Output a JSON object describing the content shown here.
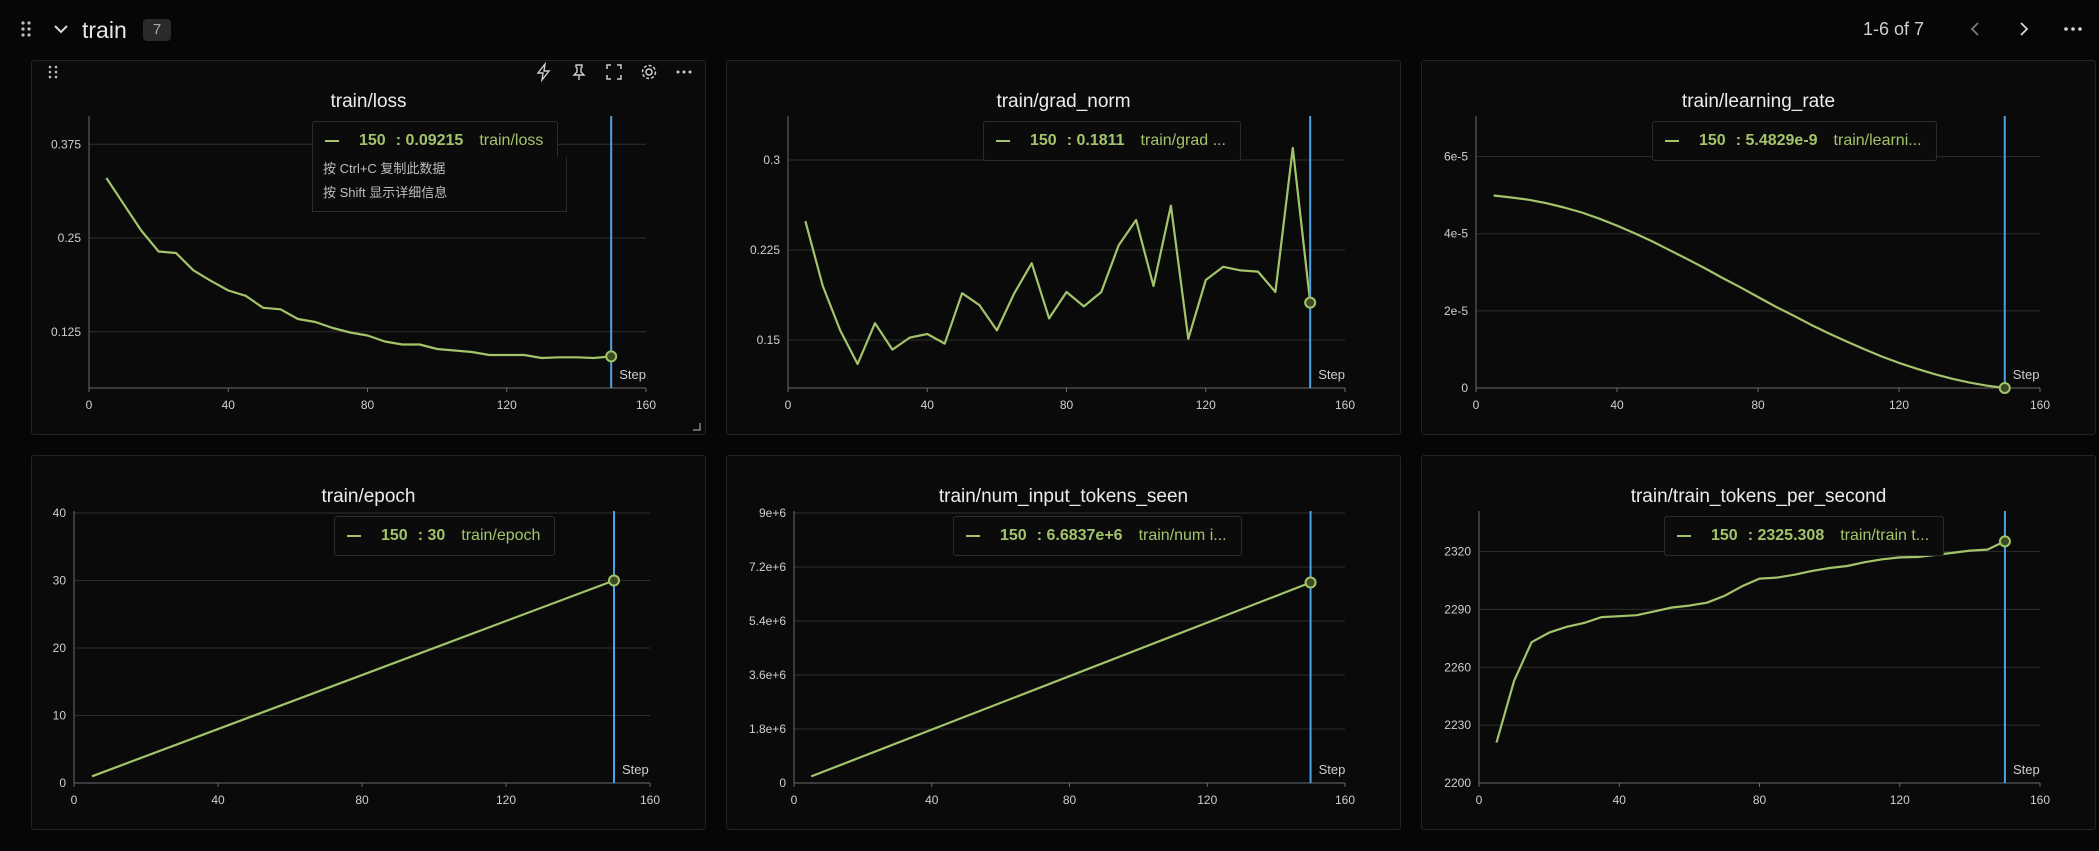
{
  "header": {
    "title": "train",
    "count": "7",
    "pager": "1-6 of 7"
  },
  "tooltip_hint": {
    "copy": "按 Ctrl+C 复制此数据",
    "detail": "按 Shift 显示详细信息"
  },
  "colors": {
    "series": "#a3c46a",
    "cursor": "#4aa3e6",
    "grid": "#2e2e2e",
    "axis": "#6a6a6a"
  },
  "chart_data": [
    {
      "type": "line",
      "title": "train/loss",
      "xlabel": "Step",
      "xlim": [
        0,
        160
      ],
      "xticks": [
        0,
        40,
        80,
        120,
        160
      ],
      "ylim": [
        0.05,
        0.41
      ],
      "yticks": [
        0.125,
        0.25,
        0.375
      ],
      "ytick_labels": [
        "0.125",
        "0.25",
        "0.375"
      ],
      "x": [
        5,
        10,
        15,
        20,
        25,
        30,
        35,
        40,
        45,
        50,
        55,
        60,
        65,
        70,
        75,
        80,
        85,
        90,
        95,
        100,
        105,
        110,
        115,
        120,
        125,
        130,
        135,
        140,
        145,
        150
      ],
      "y": [
        0.33,
        0.295,
        0.26,
        0.232,
        0.23,
        0.207,
        0.193,
        0.18,
        0.173,
        0.157,
        0.155,
        0.142,
        0.138,
        0.13,
        0.124,
        0.12,
        0.112,
        0.108,
        0.108,
        0.102,
        0.1,
        0.098,
        0.094,
        0.094,
        0.094,
        0.09,
        0.091,
        0.091,
        0.09,
        0.09215
      ],
      "cursor": {
        "step": "150",
        "value": "0.09215",
        "series": "train/loss"
      }
    },
    {
      "type": "line",
      "title": "train/grad_norm",
      "xlabel": "Step",
      "xlim": [
        0,
        160
      ],
      "xticks": [
        0,
        40,
        80,
        120,
        160
      ],
      "ylim": [
        0.11,
        0.335
      ],
      "yticks": [
        0.15,
        0.225,
        0.3
      ],
      "ytick_labels": [
        "0.15",
        "0.225",
        "0.3"
      ],
      "x": [
        5,
        10,
        15,
        20,
        25,
        30,
        35,
        40,
        45,
        50,
        55,
        60,
        65,
        70,
        75,
        80,
        85,
        90,
        95,
        100,
        105,
        110,
        115,
        120,
        125,
        130,
        135,
        140,
        145,
        150
      ],
      "y": [
        0.249,
        0.195,
        0.158,
        0.13,
        0.164,
        0.142,
        0.152,
        0.155,
        0.147,
        0.189,
        0.179,
        0.158,
        0.189,
        0.214,
        0.168,
        0.19,
        0.178,
        0.19,
        0.229,
        0.25,
        0.195,
        0.262,
        0.151,
        0.2,
        0.211,
        0.208,
        0.207,
        0.19,
        0.31,
        0.1811
      ],
      "cursor": {
        "step": "150",
        "value": "0.1811",
        "series": "train/grad ..."
      }
    },
    {
      "type": "line",
      "title": "train/learning_rate",
      "xlabel": "Step",
      "xlim": [
        0,
        160
      ],
      "xticks": [
        0,
        40,
        80,
        120,
        160
      ],
      "ylim": [
        0,
        7e-05
      ],
      "yticks": [
        0,
        2e-05,
        4e-05,
        6e-05
      ],
      "ytick_labels": [
        "0",
        "2e-5",
        "4e-5",
        "6e-5"
      ],
      "x": [
        5,
        10,
        15,
        20,
        25,
        30,
        35,
        40,
        45,
        50,
        55,
        60,
        65,
        70,
        75,
        80,
        85,
        90,
        95,
        100,
        105,
        110,
        115,
        120,
        125,
        130,
        135,
        140,
        145,
        150
      ],
      "y": [
        4.99e-05,
        4.94e-05,
        4.88e-05,
        4.79e-05,
        4.68e-05,
        4.55e-05,
        4.39e-05,
        4.21e-05,
        4.01e-05,
        3.8e-05,
        3.57e-05,
        3.34e-05,
        3.1e-05,
        2.85e-05,
        2.61e-05,
        2.36e-05,
        2.11e-05,
        1.88e-05,
        1.64e-05,
        1.42e-05,
        1.21e-05,
        1.01e-05,
        8.2e-06,
        6.5e-06,
        5e-06,
        3.6e-06,
        2.4e-06,
        1.4e-06,
        6e-07,
        5e-09
      ],
      "cursor": {
        "step": "150",
        "value": "5.4829e-9",
        "series": "train/learni..."
      }
    },
    {
      "type": "line",
      "title": "train/epoch",
      "xlabel": "Step",
      "xlim": [
        0,
        160
      ],
      "xticks": [
        0,
        40,
        80,
        120,
        160
      ],
      "ylim": [
        0,
        40
      ],
      "yticks": [
        0,
        10,
        20,
        30,
        40
      ],
      "ytick_labels": [
        "0",
        "10",
        "20",
        "30",
        "40"
      ],
      "x": [
        5,
        150
      ],
      "y": [
        1,
        30
      ],
      "cursor": {
        "step": "150",
        "value": "30",
        "series": "train/epoch"
      }
    },
    {
      "type": "line",
      "title": "train/num_input_tokens_seen",
      "xlabel": "Step",
      "xlim": [
        0,
        160
      ],
      "xticks": [
        0,
        40,
        80,
        120,
        160
      ],
      "ylim": [
        0,
        9000000
      ],
      "yticks": [
        0,
        1800000,
        3600000,
        5400000,
        7200000,
        9000000
      ],
      "ytick_labels": [
        "0",
        "1.8e+6",
        "3.6e+6",
        "5.4e+6",
        "7.2e+6",
        "9e+6"
      ],
      "x": [
        5,
        150
      ],
      "y": [
        220000,
        6683700
      ],
      "cursor": {
        "step": "150",
        "value": "6.6837e+6",
        "series": "train/num i..."
      }
    },
    {
      "type": "line",
      "title": "train/train_tokens_per_second",
      "xlabel": "Step",
      "xlim": [
        0,
        160
      ],
      "xticks": [
        0,
        40,
        80,
        120,
        160
      ],
      "ylim": [
        2200,
        2340
      ],
      "yticks": [
        2200,
        2230,
        2260,
        2290,
        2320
      ],
      "ytick_labels": [
        "2200",
        "2230",
        "2260",
        "2290",
        "2320"
      ],
      "x": [
        5,
        10,
        15,
        20,
        25,
        30,
        35,
        40,
        45,
        50,
        55,
        60,
        65,
        70,
        75,
        80,
        85,
        90,
        95,
        100,
        105,
        110,
        115,
        120,
        125,
        130,
        135,
        140,
        145,
        150
      ],
      "y": [
        2221,
        2253,
        2273,
        2278,
        2281,
        2283,
        2286,
        2286.5,
        2287,
        2289,
        2291,
        2292,
        2293.5,
        2297,
        2302,
        2306,
        2306.5,
        2308,
        2310,
        2311.5,
        2312.5,
        2314.5,
        2316,
        2317,
        2317.2,
        2318.2,
        2319.3,
        2320.5,
        2321,
        2325.308
      ],
      "cursor": {
        "step": "150",
        "value": "2325.308",
        "series": "train/train  t..."
      }
    }
  ]
}
